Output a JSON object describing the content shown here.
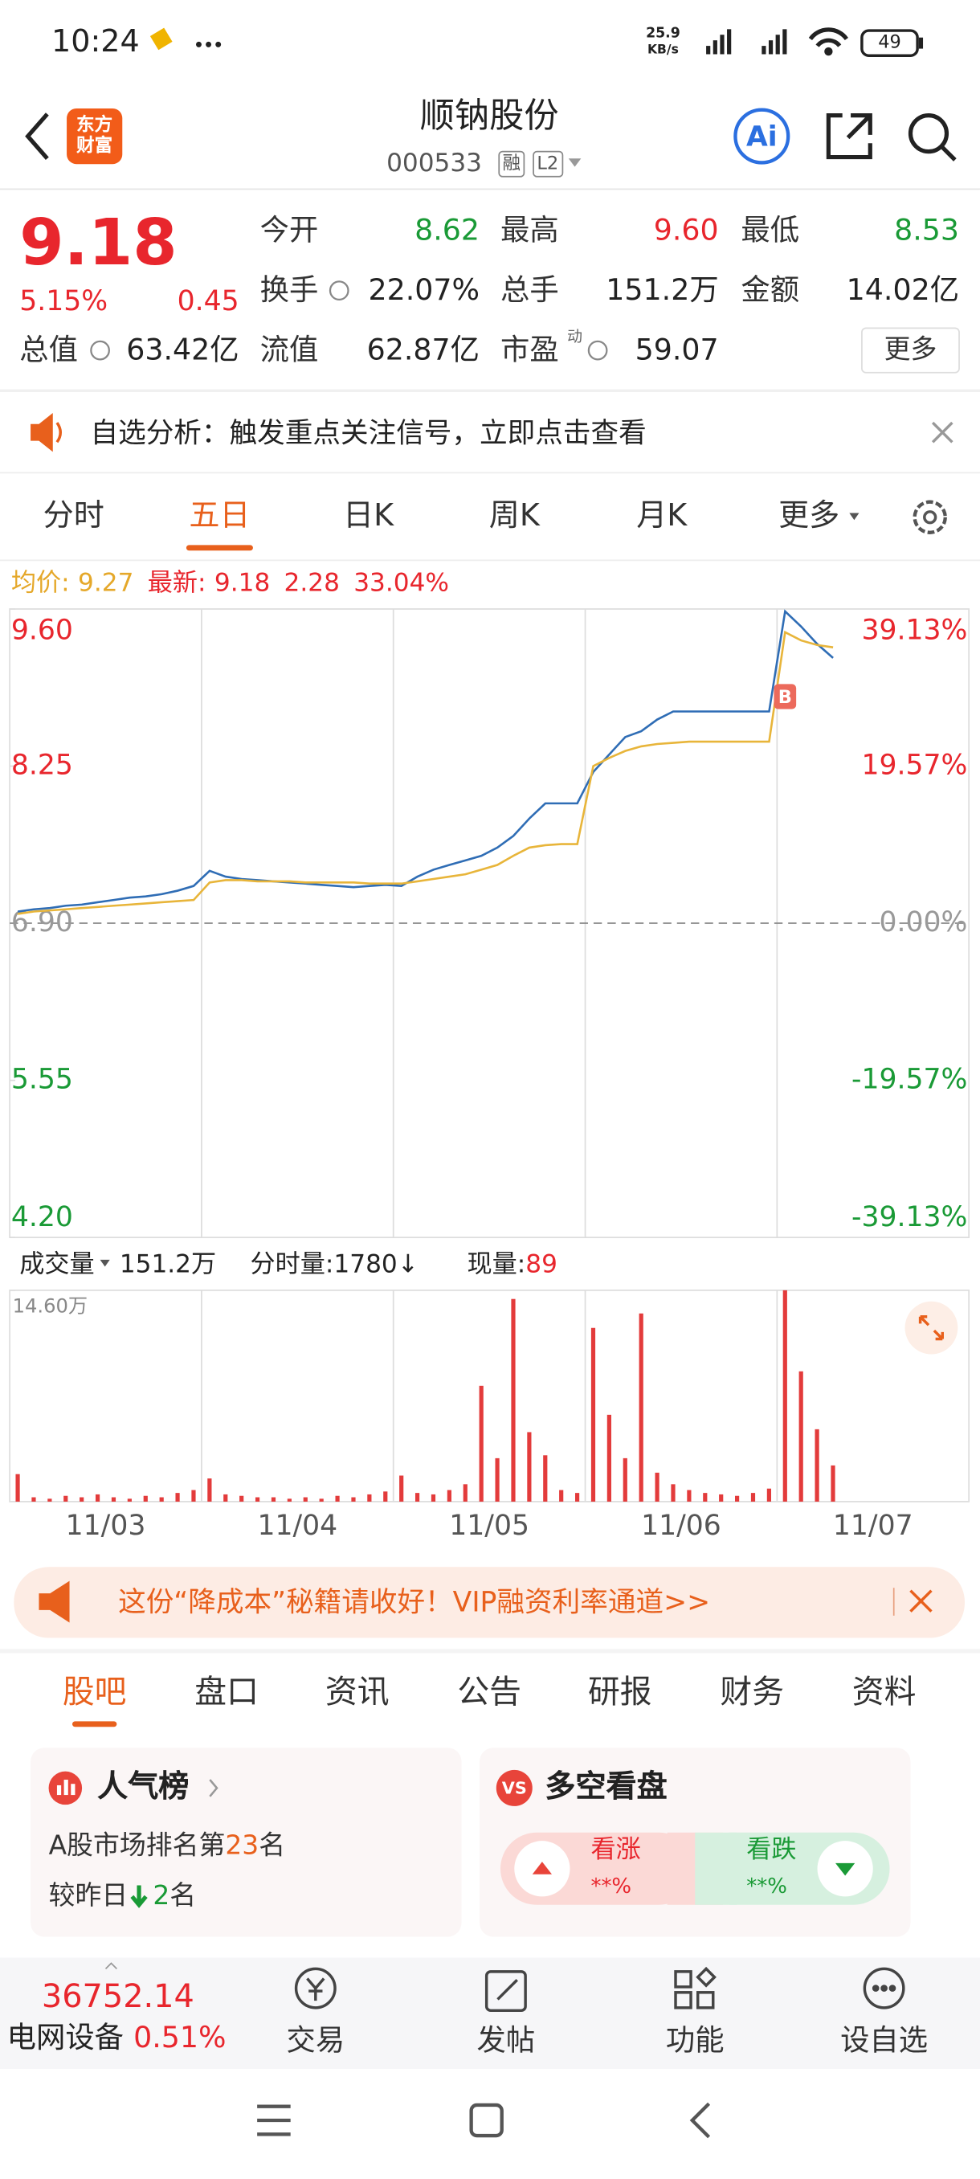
{
  "status_bar": {
    "time": "10:24",
    "net_speed": "25.9",
    "net_unit": "KB/s",
    "battery": "49"
  },
  "header": {
    "logo": "东方财富",
    "title": "顺钠股份",
    "code": "000533",
    "tags": [
      "融",
      "L2"
    ],
    "ai": "Ai"
  },
  "quote": {
    "price": "9.18",
    "change_pct": "5.15%",
    "change": "0.45",
    "fields": [
      {
        "label": "今开",
        "value": "8.62",
        "color": "#1a9a36"
      },
      {
        "label": "最高",
        "value": "9.60",
        "color": "#e8262d"
      },
      {
        "label": "最低",
        "value": "8.53",
        "color": "#1a9a36"
      },
      {
        "label": "换手",
        "value": "22.07%",
        "color": "#222222"
      },
      {
        "label": "总手",
        "value": "151.2万",
        "color": "#222222"
      },
      {
        "label": "金额",
        "value": "14.02亿",
        "color": "#222222"
      },
      {
        "label": "总值",
        "value": "63.42亿",
        "color": "#222222"
      },
      {
        "label": "流值",
        "value": "62.87亿",
        "color": "#222222"
      },
      {
        "label": "市盈",
        "value": "59.07",
        "color": "#222222"
      }
    ],
    "pe_tag": "动",
    "more": "更多"
  },
  "notice": {
    "text": "自选分析：触发重点关注信号，立即点击查看"
  },
  "chart_tabs": {
    "items": [
      "分时",
      "五日",
      "日K",
      "周K",
      "月K",
      "更多"
    ],
    "active": 1
  },
  "chart_info": {
    "avg_label": "均价:",
    "avg": "9.27",
    "last_label": "最新:",
    "last": "9.18",
    "change": "2.28",
    "change_pct": "33.04%"
  },
  "chart_data": [
    {
      "type": "line",
      "ylim": [
        4.2,
        9.6
      ],
      "yticks": [
        {
          "value": 9.6,
          "label": "9.60"
        },
        {
          "value": 8.25,
          "label": "8.25"
        },
        {
          "value": 6.9,
          "label": "6.90"
        },
        {
          "value": 5.55,
          "label": "5.55"
        },
        {
          "value": 4.2,
          "label": "4.20"
        }
      ],
      "right_labels": [
        "39.13%",
        "19.57%",
        "0.00%",
        "-19.57%",
        "-39.13%"
      ],
      "marker": "B",
      "series": [
        {
          "color": "#2f6db5",
          "values": [
            [
              7.0,
              7.02,
              7.03,
              7.05,
              7.06,
              7.08,
              7.1,
              7.12,
              7.13,
              7.15,
              7.18,
              7.22
            ],
            [
              7.35,
              7.3,
              7.28,
              7.27,
              7.26,
              7.25,
              7.24,
              7.23,
              7.22,
              7.21,
              7.22,
              7.23
            ],
            [
              7.22,
              7.3,
              7.36,
              7.4,
              7.44,
              7.48,
              7.55,
              7.65,
              7.8,
              7.93,
              7.93,
              7.93
            ],
            [
              8.2,
              8.35,
              8.5,
              8.55,
              8.65,
              8.72,
              8.72,
              8.72,
              8.72,
              8.72,
              8.72,
              8.72
            ],
            [
              9.58,
              9.45,
              9.3,
              9.18,
              null,
              null,
              null,
              null,
              null,
              null,
              null,
              null
            ]
          ]
        },
        {
          "color": "#e8b53a",
          "values": [
            [
              6.98,
              7.0,
              7.01,
              7.02,
              7.03,
              7.04,
              7.05,
              7.06,
              7.07,
              7.08,
              7.09,
              7.1
            ],
            [
              7.25,
              7.27,
              7.27,
              7.26,
              7.26,
              7.26,
              7.25,
              7.25,
              7.25,
              7.25,
              7.24,
              7.24
            ],
            [
              7.24,
              7.26,
              7.28,
              7.3,
              7.32,
              7.36,
              7.4,
              7.48,
              7.55,
              7.57,
              7.58,
              7.58
            ],
            [
              8.25,
              8.32,
              8.38,
              8.42,
              8.44,
              8.45,
              8.46,
              8.46,
              8.46,
              8.46,
              8.46,
              8.46
            ],
            [
              9.4,
              9.33,
              9.29,
              9.27,
              null,
              null,
              null,
              null,
              null,
              null,
              null,
              null
            ]
          ]
        }
      ]
    },
    {
      "type": "bar",
      "ylim": [
        0,
        14.6
      ],
      "yticks": [
        {
          "value": 14.6,
          "label": "14.60万"
        }
      ],
      "categories": [
        "11/03",
        "11/04",
        "11/05",
        "11/06",
        "11/07"
      ],
      "series": [
        {
          "color": "#e33b3b",
          "values": [
            [
              1.9,
              0.3,
              0.2,
              0.4,
              0.3,
              0.5,
              0.3,
              0.2,
              0.4,
              0.3,
              0.6,
              0.8
            ],
            [
              1.6,
              0.5,
              0.4,
              0.3,
              0.3,
              0.2,
              0.3,
              0.2,
              0.4,
              0.3,
              0.5,
              0.7
            ],
            [
              1.8,
              0.6,
              0.5,
              0.8,
              1.2,
              8.0,
              3.0,
              14.0,
              4.8,
              3.2,
              0.8,
              0.6
            ],
            [
              12.0,
              6.0,
              3.0,
              13.0,
              2.0,
              1.2,
              0.8,
              0.6,
              0.5,
              0.4,
              0.6,
              0.9
            ],
            [
              14.6,
              9.0,
              5.0,
              2.5,
              null,
              null,
              null,
              null,
              null,
              null,
              null,
              null
            ]
          ]
        }
      ]
    }
  ],
  "volume_info": {
    "label": "成交量",
    "total": "151.2万",
    "per_minute": "分时量:1780↓",
    "current_label": "现量:",
    "current": "89"
  },
  "banner": {
    "text": "这份“降成本”秘籍请收好！VIP融资利率通道>>"
  },
  "section_tabs": {
    "items": [
      "股吧",
      "盘口",
      "资讯",
      "公告",
      "研报",
      "财务",
      "资料"
    ],
    "active": 0
  },
  "cards": {
    "popularity": {
      "title": "人气榜",
      "rank_prefix": "A股市场排名第",
      "rank": "23",
      "rank_suffix": "名",
      "change_prefix": "较昨日",
      "change": "2",
      "change_suffix": "名"
    },
    "sentiment": {
      "icon": "VS",
      "title": "多空看盘",
      "bull": "看涨",
      "bull_value": "**%",
      "bear": "看跌",
      "bear_value": "**%"
    }
  },
  "bottom_nav": {
    "index_value": "36752.14",
    "sector": "电网设备",
    "sector_change": "0.51%",
    "items": [
      "交易",
      "发帖",
      "功能",
      "设自选"
    ]
  }
}
